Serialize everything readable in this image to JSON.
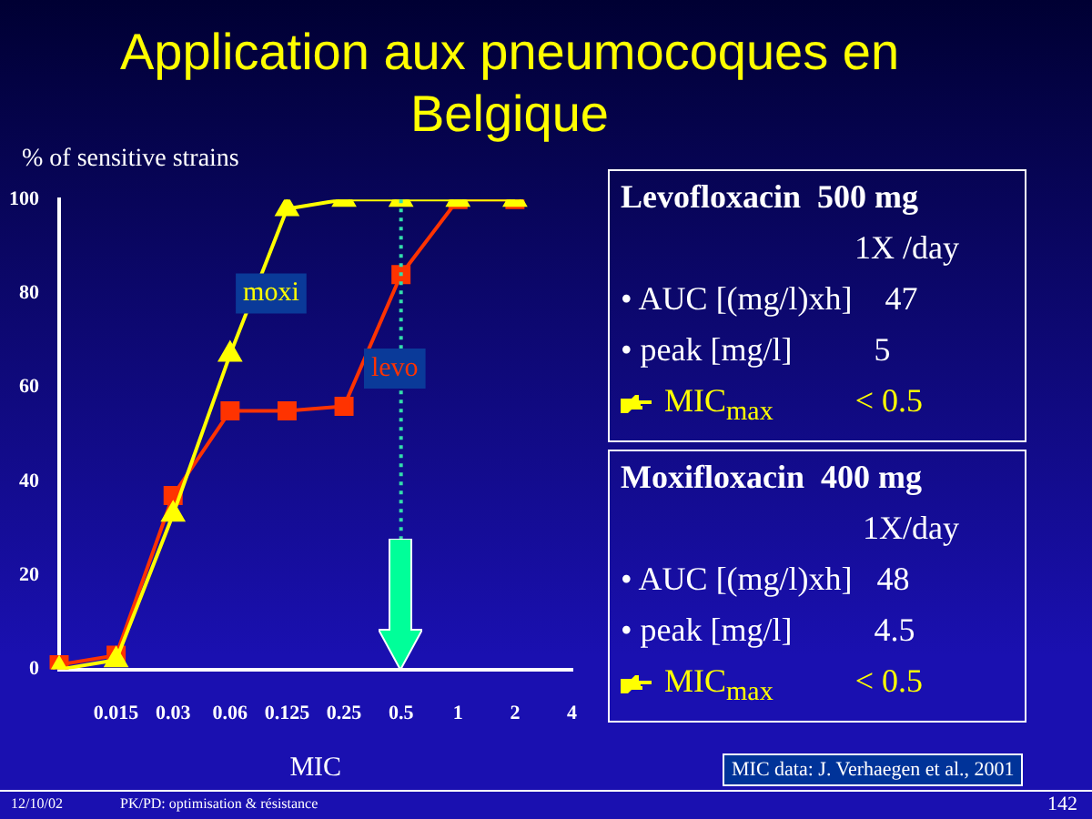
{
  "chart_data": {
    "type": "line",
    "title": "Application aux pneumocoques en Belgique",
    "xlabel": "MIC",
    "ylabel": "% of sensitive strains",
    "categories": [
      null,
      "0.015",
      "0.03",
      "0.06",
      "0.125",
      "0.25",
      "0.5",
      "1",
      "2",
      "4"
    ],
    "series": [
      {
        "name": "moxi",
        "color": "#ffff00",
        "marker": "triangle",
        "values": [
          0,
          2,
          33,
          67,
          98,
          100,
          100,
          100,
          100,
          null
        ]
      },
      {
        "name": "levo",
        "color": "#ff3300",
        "marker": "square",
        "values": [
          1,
          3,
          37,
          55,
          55,
          56,
          84,
          100,
          100,
          null
        ]
      }
    ],
    "ylim": [
      0,
      100
    ],
    "yticks": [
      0,
      20,
      40,
      60,
      80,
      100
    ],
    "grid": false,
    "legend": false,
    "line_style": "solid",
    "ref_lines": [
      {
        "axis": "x",
        "value": "0.5",
        "color": "#33ddaa",
        "line_style": "dotted"
      }
    ],
    "annotations": [
      "Levofloxacin  500 mg",
      "1X /day",
      "• AUC [(mg/l)xh]    47",
      "• peak [mg/l]          5",
      "MIC$_{max}$          < 0.5",
      "Moxifloxacin  400 mg",
      "1X/day",
      "• AUC [(mg/l)xh]   48",
      "• peak [mg/l]          4.5",
      "MIC$_{max}$          < 0.5",
      "MIC data: J. Verhaegen et al., 2001",
      "12/10/02",
      "PK/PD: optimisation & résistance",
      "142"
    ]
  }
}
